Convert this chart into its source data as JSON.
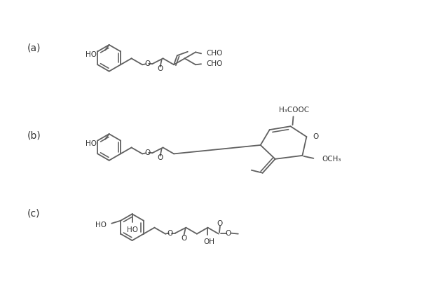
{
  "background_color": "#ffffff",
  "figure_width": 6.15,
  "figure_height": 4.08,
  "dpi": 100,
  "label_a": "(a)",
  "label_b": "(b)",
  "label_c": "(c)",
  "label_fontsize": 10,
  "chem_fontsize": 7.5,
  "line_color": "#606060",
  "line_width": 1.3,
  "text_color": "#333333"
}
